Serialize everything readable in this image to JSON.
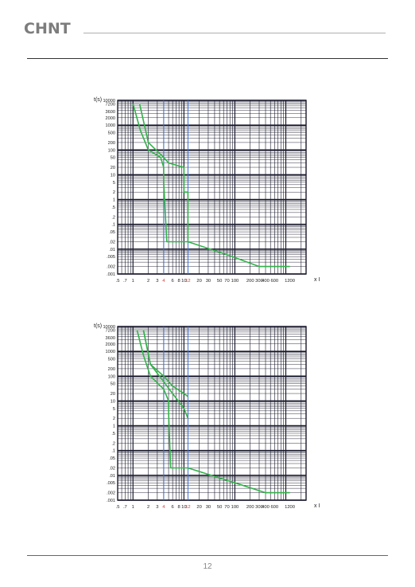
{
  "header": {
    "logo_text": "CHNT"
  },
  "footer": {
    "page_number": "12"
  },
  "colors": {
    "curve": "#33b24a",
    "grid": "#1a1a2e",
    "marker_blue": "#3b6fd6",
    "marker_red": "#d83a3a",
    "text": "#222222"
  },
  "chart_data": [
    {
      "type": "line",
      "ylabel": "t(s)",
      "xlabel": "x I",
      "x_scale": "log",
      "y_scale": "log",
      "xlim": [
        0.5,
        2500
      ],
      "ylim": [
        0.001,
        10000
      ],
      "grid": true,
      "y_tick_labels": [
        "10000",
        "7200",
        "3600",
        "2000",
        "1000",
        "500",
        "200",
        "100",
        "50",
        "20",
        "10",
        "5",
        "2",
        "1",
        ".5",
        ".2",
        ".1",
        ".05",
        ".02",
        ".01",
        ".005",
        ".002",
        ".001"
      ],
      "x_tick_labels": [
        ".5",
        ".7",
        "1",
        "2",
        "3",
        "4",
        "6",
        "8",
        "10",
        "12",
        "20",
        "30",
        "50",
        "70",
        "100",
        "200",
        "300",
        "400",
        "600",
        "1200"
      ],
      "x_highlight_red": [
        "4",
        "12"
      ],
      "series": [
        {
          "x": [
            1.0,
            1.4,
            2.0,
            3.5,
            4.0,
            4.0,
            4.6,
            12,
            70,
            300,
            1200
          ],
          "y": [
            7200,
            600,
            100,
            50,
            20,
            5,
            0.02,
            0.02,
            0.006,
            0.002,
            0.002
          ]
        },
        {
          "x": [
            1.35,
            2.0,
            4.0,
            5.0,
            10,
            10,
            12,
            12
          ],
          "y": [
            7200,
            200,
            50,
            30,
            20,
            2,
            2,
            0.02
          ]
        }
      ]
    },
    {
      "type": "line",
      "ylabel": "t(s)",
      "xlabel": "x I",
      "x_scale": "log",
      "y_scale": "log",
      "xlim": [
        0.5,
        2500
      ],
      "ylim": [
        0.001,
        10000
      ],
      "grid": true,
      "y_tick_labels": [
        "10000",
        "7200",
        "3600",
        "2000",
        "1000",
        "500",
        "200",
        "100",
        "50",
        "20",
        "10",
        "5",
        "2",
        "1",
        ".5",
        ".2",
        ".1",
        ".05",
        ".02",
        ".01",
        ".005",
        ".002",
        ".001"
      ],
      "x_tick_labels": [
        ".5",
        ".7",
        "1",
        "2",
        "3",
        "4",
        "6",
        "8",
        "10",
        "12",
        "20",
        "30",
        "50",
        "70",
        "100",
        "200",
        "300",
        "400",
        "600",
        "1200"
      ],
      "x_highlight_red": [
        "4",
        "12"
      ],
      "series": [
        {
          "x": [
            1.2,
            1.6,
            2.2,
            4.0,
            5.0,
            5.0,
            5.5,
            12,
            100,
            400,
            1200
          ],
          "y": [
            7200,
            700,
            100,
            30,
            10,
            3,
            0.02,
            0.02,
            0.005,
            0.002,
            0.002
          ]
        },
        {
          "x": [
            1.6,
            2.2,
            4.0,
            6.0,
            10,
            12
          ],
          "y": [
            7200,
            300,
            60,
            20,
            5,
            2
          ]
        },
        {
          "x": [
            1.6,
            2.2,
            4.0,
            6.0,
            10,
            12
          ],
          "y": [
            7200,
            300,
            100,
            40,
            20,
            15
          ]
        }
      ]
    }
  ]
}
